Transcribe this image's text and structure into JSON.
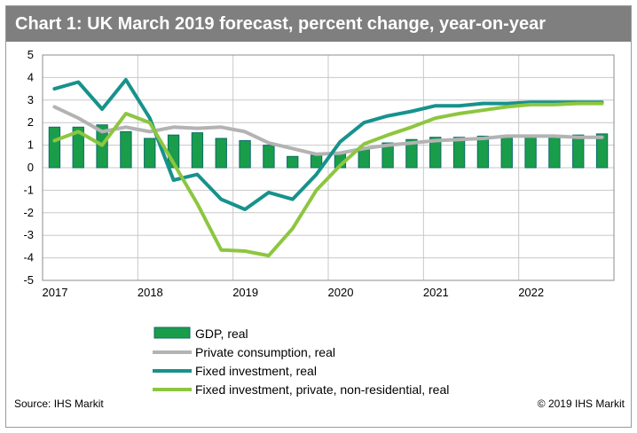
{
  "header": {
    "title": "Chart 1: UK March 2019 forecast, percent change, year-on-year"
  },
  "footer": {
    "source": "Source: IHS Markit",
    "copyright": "© 2019 IHS Markit"
  },
  "colors": {
    "gdp_fill": "#1a9d4a",
    "gdp_border": "#0d6b6b",
    "consumption": "#b3b3b3",
    "fixed_investment": "#17928c",
    "private_investment": "#8dc63f",
    "grid": "#c8c8c8"
  },
  "chart_data": {
    "type": "bar",
    "title": "Chart 1: UK March 2019 forecast, percent change, year-on-year",
    "xlabel": "",
    "ylabel": "",
    "ylim": [
      -5,
      5
    ],
    "yticks": [
      "5",
      "4",
      "3",
      "2",
      "1",
      "0",
      "-1",
      "-2",
      "-3",
      "-4",
      "-5"
    ],
    "xticks": [
      "2017",
      "2018",
      "2019",
      "2020",
      "2021",
      "2022"
    ],
    "grid": true,
    "legend_position": "bottom",
    "categories": [
      "2017Q1",
      "2017Q2",
      "2017Q3",
      "2017Q4",
      "2018Q1",
      "2018Q2",
      "2018Q3",
      "2018Q4",
      "2019Q1",
      "2019Q2",
      "2019Q3",
      "2019Q4",
      "2020Q1",
      "2020Q2",
      "2020Q3",
      "2020Q4",
      "2021Q1",
      "2021Q2",
      "2021Q3",
      "2021Q4",
      "2022Q1",
      "2022Q2",
      "2022Q3",
      "2022Q4"
    ],
    "series": [
      {
        "name": "GDP, real",
        "kind": "bar",
        "values": [
          1.8,
          1.8,
          1.9,
          1.6,
          1.3,
          1.45,
          1.55,
          1.3,
          1.2,
          1.0,
          0.5,
          0.55,
          0.65,
          0.9,
          1.1,
          1.25,
          1.35,
          1.35,
          1.4,
          1.4,
          1.4,
          1.4,
          1.45,
          1.5
        ]
      },
      {
        "name": "Private consumption, real",
        "kind": "line",
        "values": [
          2.7,
          2.2,
          1.6,
          1.8,
          1.6,
          1.8,
          1.75,
          1.8,
          1.6,
          1.1,
          0.85,
          0.6,
          0.65,
          0.85,
          1.0,
          1.1,
          1.2,
          1.25,
          1.3,
          1.4,
          1.4,
          1.4,
          1.35,
          1.35
        ]
      },
      {
        "name": "Fixed investment, real",
        "kind": "line",
        "values": [
          3.5,
          3.8,
          2.6,
          3.9,
          2.2,
          -0.55,
          -0.3,
          -1.4,
          -1.85,
          -1.1,
          -1.4,
          -0.3,
          1.15,
          2.0,
          2.3,
          2.5,
          2.75,
          2.75,
          2.85,
          2.85,
          2.9,
          2.9,
          2.9,
          2.9
        ]
      },
      {
        "name": "Fixed investment, private, non-residential, real",
        "kind": "line",
        "values": [
          1.2,
          1.6,
          1.0,
          2.4,
          2.0,
          0.2,
          -1.6,
          -3.65,
          -3.7,
          -3.9,
          -2.7,
          -1.0,
          0.1,
          1.05,
          1.45,
          1.8,
          2.2,
          2.4,
          2.55,
          2.7,
          2.8,
          2.8,
          2.85,
          2.85
        ]
      }
    ]
  }
}
